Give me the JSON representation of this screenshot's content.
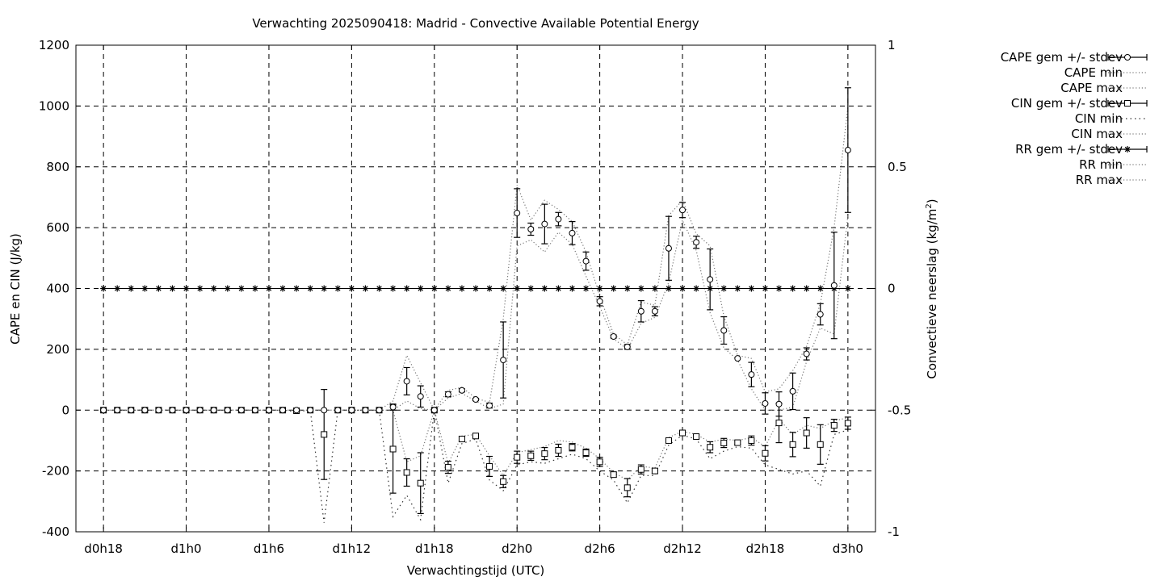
{
  "chart_data": {
    "type": "line",
    "title": "Verwachting 2025090418: Madrid - Convective Available Potential Energy",
    "xlabel": "Verwachtingstijd (UTC)",
    "ylabel": "CAPE en CIN (J/kg)",
    "y2label": "Convectieve neerslag (kg/m",
    "y2label_sup": "2",
    "y2label_end": ")",
    "ylim": [
      -400,
      1200
    ],
    "y2lim": [
      -1,
      1
    ],
    "xlim": [
      -2,
      56
    ],
    "grid": true,
    "legend_position": "top-right outside",
    "x_ticks": [
      {
        "x": 0,
        "label": "d0h18"
      },
      {
        "x": 6,
        "label": "d1h0"
      },
      {
        "x": 12,
        "label": "d1h6"
      },
      {
        "x": 18,
        "label": "d1h12"
      },
      {
        "x": 24,
        "label": "d1h18"
      },
      {
        "x": 30,
        "label": "d2h0"
      },
      {
        "x": 36,
        "label": "d2h6"
      },
      {
        "x": 42,
        "label": "d2h12"
      },
      {
        "x": 48,
        "label": "d2h18"
      },
      {
        "x": 54,
        "label": "d3h0"
      }
    ],
    "y_ticks": [
      {
        "v": -400,
        "label": "-400"
      },
      {
        "v": -200,
        "label": "-200"
      },
      {
        "v": 0,
        "label": "0"
      },
      {
        "v": 200,
        "label": "200"
      },
      {
        "v": 400,
        "label": "400"
      },
      {
        "v": 600,
        "label": "600"
      },
      {
        "v": 800,
        "label": "800"
      },
      {
        "v": 1000,
        "label": "1000"
      },
      {
        "v": 1200,
        "label": "1200"
      }
    ],
    "y2_ticks": [
      {
        "v": -1,
        "label": "-1"
      },
      {
        "v": -0.5,
        "label": "-0.5"
      },
      {
        "v": 0,
        "label": "0"
      },
      {
        "v": 0.5,
        "label": "0.5"
      },
      {
        "v": 1,
        "label": "1"
      }
    ],
    "legend": [
      {
        "label": "CAPE gem +/- stdev",
        "style": "errbar",
        "marker": "circle"
      },
      {
        "label": "CAPE min",
        "style": "dotted"
      },
      {
        "label": "CAPE max",
        "style": "dotted"
      },
      {
        "label": "CIN gem +/- stdev",
        "style": "errbar",
        "marker": "square"
      },
      {
        "label": "CIN min",
        "style": "dotted-sparse"
      },
      {
        "label": "CIN max",
        "style": "dotted"
      },
      {
        "label": "RR gem +/- stdev",
        "style": "errbar",
        "marker": "star"
      },
      {
        "label": "RR min",
        "style": "dotted"
      },
      {
        "label": "RR max",
        "style": "dotted"
      }
    ],
    "x": [
      0,
      1,
      2,
      3,
      4,
      5,
      6,
      7,
      8,
      9,
      10,
      11,
      12,
      13,
      14,
      15,
      16,
      17,
      18,
      19,
      20,
      21,
      22,
      23,
      24,
      25,
      26,
      27,
      28,
      29,
      30,
      31,
      32,
      33,
      34,
      35,
      36,
      37,
      38,
      39,
      40,
      41,
      42,
      43,
      44,
      45,
      46,
      47,
      48,
      49,
      50,
      51,
      52,
      53,
      54
    ],
    "series": [
      {
        "name": "CAPE gem +/- stdev",
        "values": [
          0,
          0,
          0,
          0,
          0,
          0,
          0,
          0,
          0,
          0,
          0,
          0,
          0,
          0,
          0,
          0,
          0,
          0,
          0,
          0,
          0,
          10,
          95,
          45,
          0,
          52,
          65,
          35,
          15,
          165,
          648,
          595,
          612,
          628,
          582,
          490,
          358,
          242,
          208,
          325,
          325,
          532,
          658,
          552,
          430,
          262,
          170,
          117,
          22,
          20,
          62,
          185,
          315,
          410,
          855
        ],
        "stdev": [
          0,
          0,
          0,
          0,
          0,
          0,
          0,
          0,
          0,
          0,
          0,
          0,
          0,
          0,
          0,
          0,
          0,
          0,
          0,
          0,
          0,
          10,
          45,
          35,
          0,
          8,
          5,
          4,
          8,
          125,
          80,
          20,
          65,
          22,
          38,
          30,
          15,
          5,
          8,
          35,
          15,
          105,
          25,
          20,
          100,
          45,
          0,
          40,
          35,
          40,
          60,
          20,
          35,
          175,
          205
        ]
      },
      {
        "name": "CAPE min",
        "values": [
          0,
          0,
          0,
          0,
          0,
          0,
          0,
          0,
          0,
          0,
          0,
          0,
          0,
          0,
          0,
          0,
          0,
          0,
          0,
          0,
          0,
          0,
          30,
          5,
          0,
          40,
          55,
          30,
          5,
          20,
          540,
          560,
          520,
          585,
          545,
          440,
          340,
          235,
          200,
          285,
          305,
          420,
          625,
          525,
          320,
          205,
          165,
          70,
          0,
          0,
          10,
          160,
          270,
          250,
          640
        ]
      },
      {
        "name": "CAPE max",
        "values": [
          0,
          0,
          0,
          0,
          0,
          0,
          0,
          0,
          0,
          0,
          0,
          0,
          0,
          0,
          0,
          0,
          0,
          0,
          0,
          0,
          0,
          30,
          180,
          90,
          0,
          65,
          75,
          40,
          25,
          300,
          740,
          625,
          690,
          660,
          620,
          520,
          375,
          250,
          215,
          355,
          345,
          640,
          690,
          580,
          540,
          310,
          180,
          170,
          60,
          70,
          130,
          210,
          350,
          600,
          1000
        ]
      },
      {
        "name": "CIN gem +/- stdev",
        "values": [
          0,
          0,
          0,
          0,
          0,
          0,
          0,
          0,
          0,
          0,
          0,
          0,
          0,
          0,
          -2,
          0,
          -80,
          0,
          0,
          0,
          0,
          -128,
          -205,
          -240,
          0,
          -188,
          -95,
          -85,
          -185,
          -235,
          -155,
          -150,
          -143,
          -132,
          -122,
          -140,
          -170,
          -212,
          -255,
          -195,
          -200,
          -100,
          -75,
          -87,
          -122,
          -108,
          -107,
          -100,
          -142,
          -42,
          -113,
          -75,
          -113,
          -50,
          -43
        ],
        "stdev": [
          0,
          0,
          0,
          0,
          0,
          0,
          0,
          0,
          0,
          0,
          0,
          0,
          0,
          0,
          0,
          0,
          148,
          0,
          0,
          0,
          0,
          145,
          45,
          100,
          0,
          20,
          8,
          6,
          33,
          20,
          20,
          15,
          20,
          20,
          12,
          12,
          15,
          8,
          30,
          15,
          8,
          6,
          6,
          6,
          18,
          15,
          6,
          15,
          25,
          65,
          40,
          50,
          65,
          20,
          20
        ]
      },
      {
        "name": "CIN min",
        "values": [
          0,
          0,
          0,
          0,
          0,
          0,
          0,
          0,
          0,
          0,
          0,
          0,
          0,
          0,
          -5,
          0,
          -370,
          0,
          0,
          0,
          0,
          -350,
          -280,
          -360,
          0,
          -240,
          -110,
          -95,
          -230,
          -265,
          -180,
          -170,
          -175,
          -160,
          -145,
          -160,
          -200,
          -230,
          -305,
          -215,
          -215,
          -115,
          -82,
          -95,
          -160,
          -135,
          -120,
          -125,
          -180,
          -195,
          -210,
          -200,
          -250,
          -80,
          -65
        ]
      },
      {
        "name": "CIN max",
        "values": [
          0,
          0,
          0,
          0,
          0,
          0,
          0,
          0,
          0,
          0,
          0,
          0,
          0,
          0,
          0,
          0,
          0,
          0,
          0,
          0,
          0,
          0,
          -170,
          -150,
          0,
          -175,
          -85,
          -80,
          -150,
          -215,
          -140,
          -130,
          -120,
          -100,
          -105,
          -125,
          -160,
          -205,
          -230,
          -185,
          -190,
          -90,
          -70,
          -80,
          -105,
          -95,
          -100,
          -90,
          -120,
          -30,
          -80,
          -50,
          -60,
          -35,
          -25
        ]
      },
      {
        "name": "RR gem +/- stdev",
        "axis": "y2",
        "values": [
          0,
          0,
          0,
          0,
          0,
          0,
          0,
          0,
          0,
          0,
          0,
          0,
          0,
          0,
          0,
          0,
          0,
          0,
          0,
          0,
          0,
          0,
          0,
          0,
          0,
          0,
          0,
          0,
          0,
          0,
          0,
          0,
          0,
          0,
          0,
          0,
          0,
          0,
          0,
          0,
          0,
          0,
          0,
          0,
          0,
          0,
          0,
          0,
          0,
          0,
          0,
          0,
          0,
          0,
          0
        ]
      },
      {
        "name": "RR min",
        "axis": "y2",
        "values": [
          0,
          0,
          0,
          0,
          0,
          0,
          0,
          0,
          0,
          0,
          0,
          0,
          0,
          0,
          0,
          0,
          0,
          0,
          0,
          0,
          0,
          0,
          0,
          0,
          0,
          0,
          0,
          0,
          0,
          0,
          0,
          0,
          0,
          0,
          0,
          0,
          0,
          0,
          0,
          0,
          0,
          0,
          0,
          0,
          0,
          0,
          0,
          0,
          0,
          0,
          0,
          0,
          0,
          0,
          0
        ]
      },
      {
        "name": "RR max",
        "axis": "y2",
        "values": [
          0,
          0,
          0,
          0,
          0,
          0,
          0,
          0,
          0,
          0,
          0,
          0,
          0,
          0,
          0,
          0,
          0,
          0,
          0,
          0,
          0,
          0,
          0,
          0,
          0,
          0,
          0,
          0,
          0,
          0,
          0,
          0,
          0,
          0,
          0,
          0,
          0,
          0,
          0,
          0,
          0,
          0,
          0,
          0,
          0,
          0,
          0,
          0,
          0,
          0,
          0,
          0,
          0,
          0,
          0
        ]
      }
    ]
  }
}
